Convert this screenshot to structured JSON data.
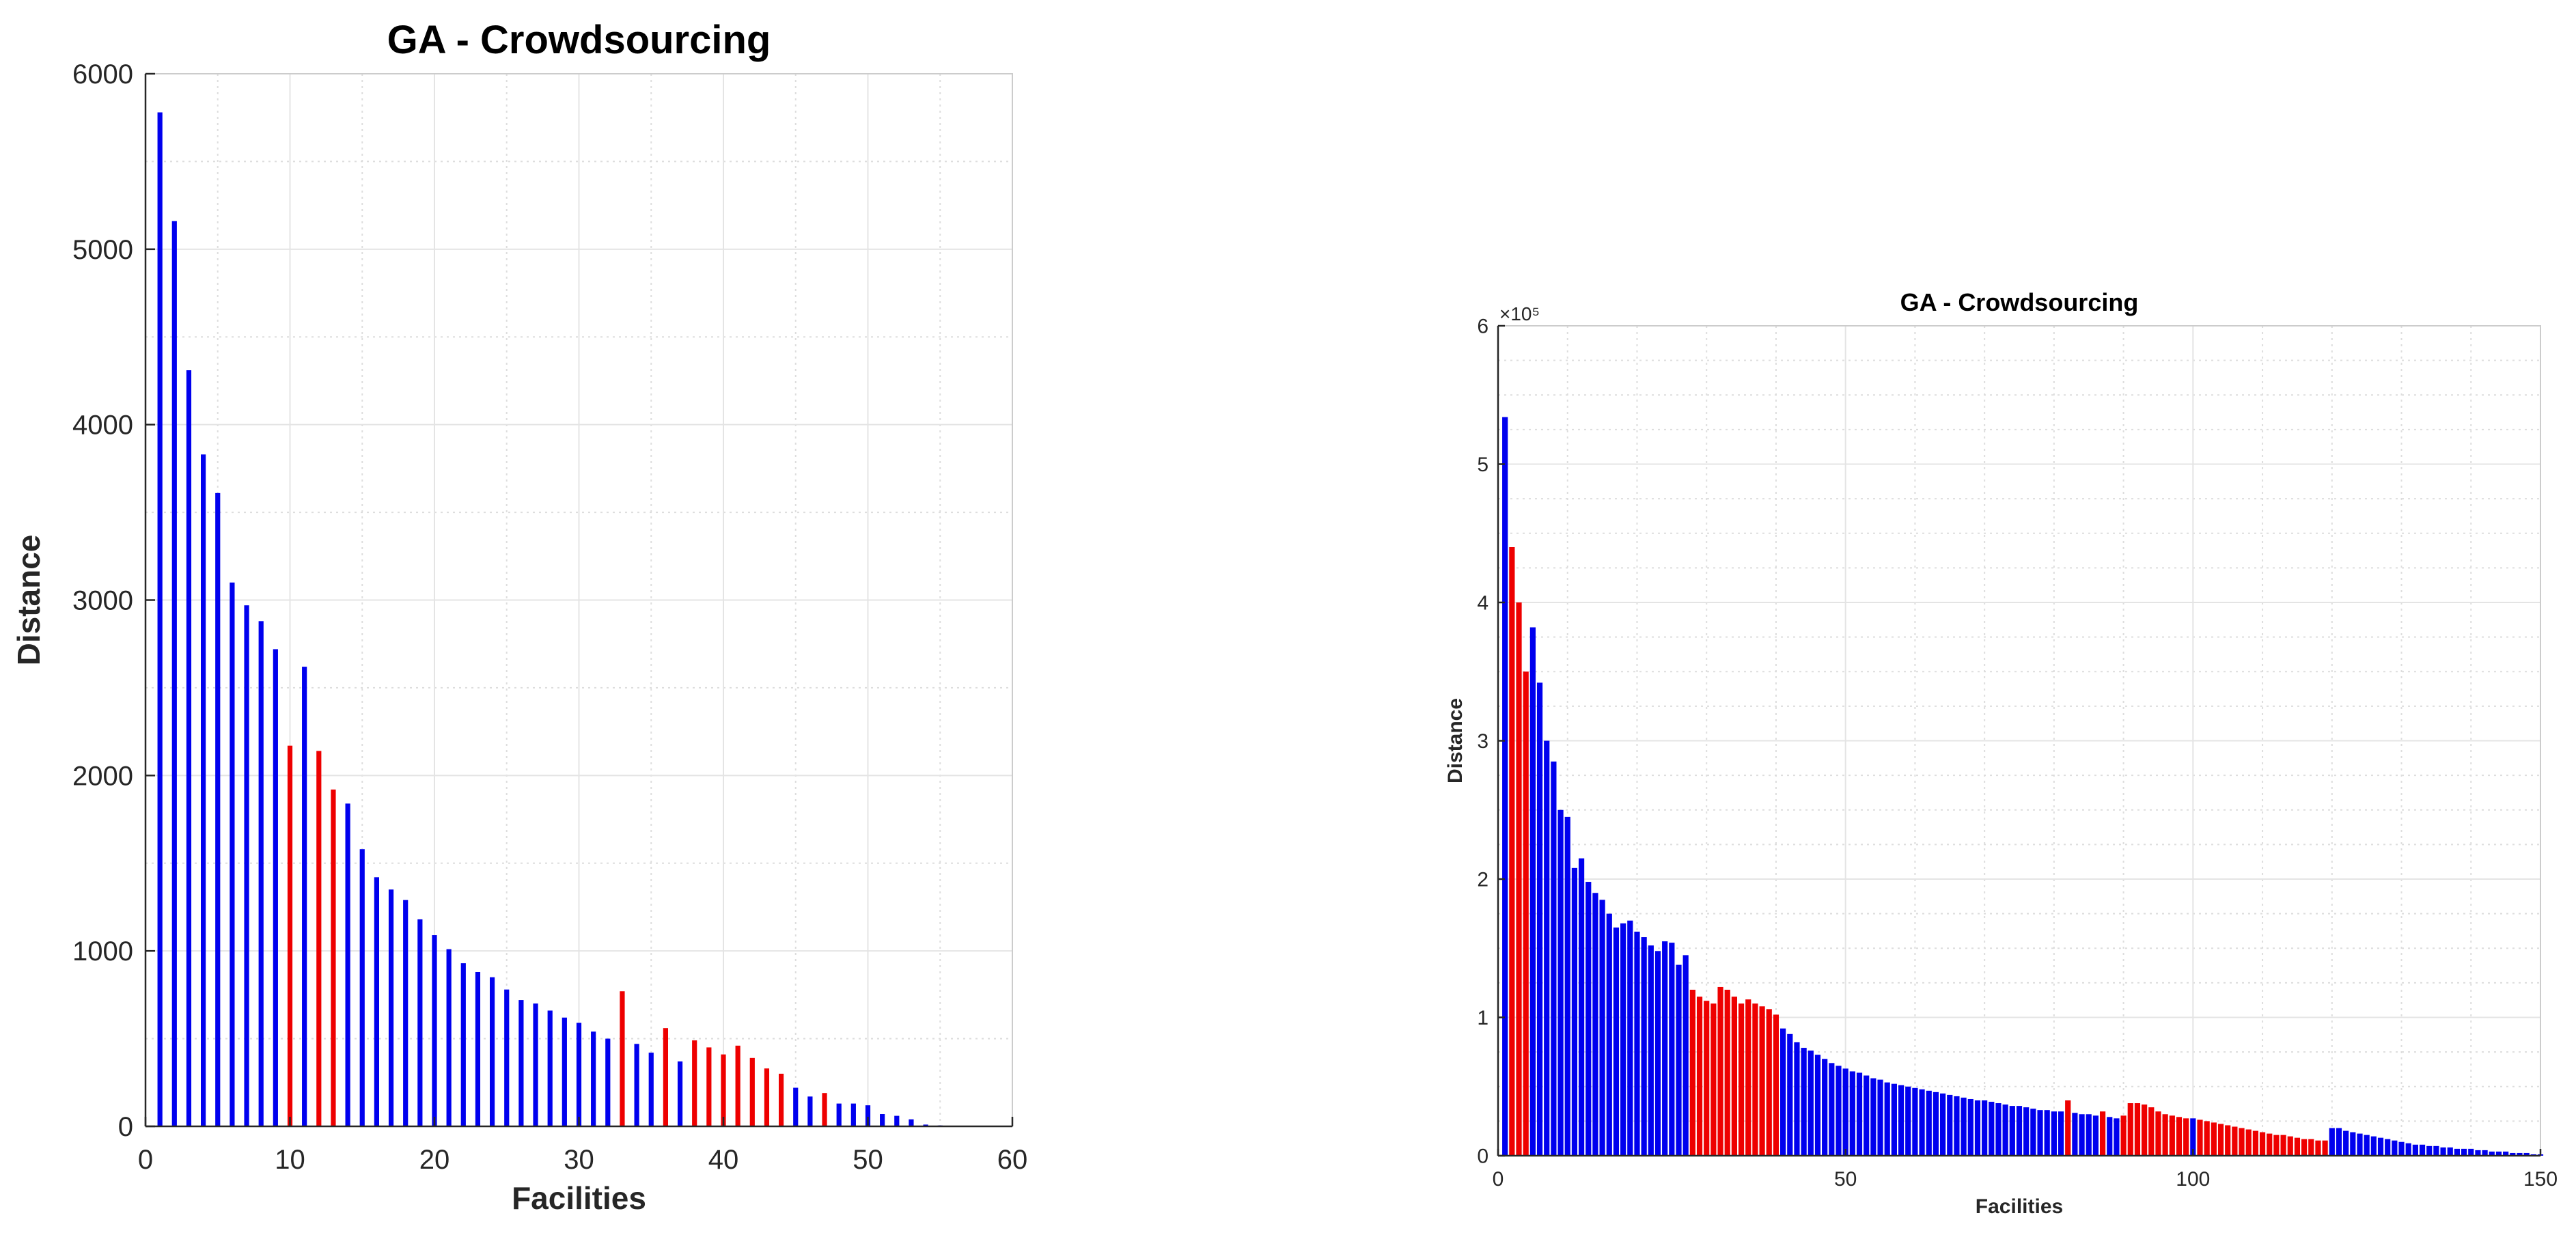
{
  "chart_data": [
    {
      "type": "bar",
      "title": "GA - Crowdsourcing",
      "xlabel": "Facilities",
      "ylabel": "Distance",
      "xlim": [
        0,
        60
      ],
      "ylim": [
        0,
        6000
      ],
      "xticks": [
        0,
        10,
        20,
        30,
        40,
        50,
        60
      ],
      "yticks": [
        0,
        1000,
        2000,
        3000,
        4000,
        5000,
        6000
      ],
      "xtick_labels": [
        "0",
        "10",
        "20",
        "30",
        "40",
        "50",
        "60"
      ],
      "ytick_labels": [
        "0",
        "1000",
        "2000",
        "3000",
        "4000",
        "5000",
        "6000"
      ],
      "exponent_label": "",
      "grid": true,
      "x": [
        1,
        2,
        3,
        4,
        5,
        6,
        7,
        8,
        9,
        10,
        11,
        12,
        13,
        14,
        15,
        16,
        17,
        18,
        19,
        20,
        21,
        22,
        23,
        24,
        25,
        26,
        27,
        28,
        29,
        30,
        31,
        32,
        33,
        34,
        35,
        36,
        37,
        38,
        39,
        40,
        41,
        42,
        43,
        44,
        45,
        46,
        47,
        48,
        49,
        50,
        51,
        52,
        53,
        54,
        55,
        56,
        57,
        58
      ],
      "values": [
        5780,
        5160,
        4310,
        3830,
        3610,
        3100,
        2970,
        2880,
        2720,
        2170,
        2620,
        2140,
        1920,
        1840,
        1580,
        1420,
        1350,
        1290,
        1180,
        1090,
        1010,
        930,
        880,
        850,
        780,
        720,
        700,
        660,
        620,
        590,
        540,
        500,
        770,
        470,
        420,
        560,
        370,
        490,
        450,
        410,
        460,
        390,
        330,
        300,
        220,
        170,
        190,
        130,
        130,
        120,
        70,
        60,
        40,
        10,
        5,
        3,
        2,
        1
      ],
      "colors": [
        "#0000ee",
        "#0000ee",
        "#0000ee",
        "#0000ee",
        "#0000ee",
        "#0000ee",
        "#0000ee",
        "#0000ee",
        "#0000ee",
        "#ee0000",
        "#0000ee",
        "#ee0000",
        "#ee0000",
        "#0000ee",
        "#0000ee",
        "#0000ee",
        "#0000ee",
        "#0000ee",
        "#0000ee",
        "#0000ee",
        "#0000ee",
        "#0000ee",
        "#0000ee",
        "#0000ee",
        "#0000ee",
        "#0000ee",
        "#0000ee",
        "#0000ee",
        "#0000ee",
        "#0000ee",
        "#0000ee",
        "#0000ee",
        "#ee0000",
        "#0000ee",
        "#0000ee",
        "#ee0000",
        "#0000ee",
        "#ee0000",
        "#ee0000",
        "#ee0000",
        "#ee0000",
        "#ee0000",
        "#ee0000",
        "#ee0000",
        "#0000ee",
        "#0000ee",
        "#ee0000",
        "#0000ee",
        "#0000ee",
        "#0000ee",
        "#0000ee",
        "#0000ee",
        "#0000ee",
        "#0000ee",
        "#0000ee",
        "#0000ee",
        "#0000ee",
        "#0000ee"
      ]
    },
    {
      "type": "bar",
      "title": "GA - Crowdsourcing",
      "xlabel": "Facilities",
      "ylabel": "Distance",
      "xlim": [
        0,
        150
      ],
      "ylim": [
        0,
        6
      ],
      "xticks": [
        0,
        50,
        100,
        150
      ],
      "yticks": [
        0,
        1,
        2,
        3,
        4,
        5,
        6
      ],
      "xtick_labels": [
        "0",
        "50",
        "100",
        "150"
      ],
      "ytick_labels": [
        "0",
        "1",
        "2",
        "3",
        "4",
        "5",
        "6"
      ],
      "exponent_label": "×10⁵",
      "grid": true,
      "x": [
        1,
        2,
        3,
        4,
        5,
        6,
        7,
        8,
        9,
        10,
        11,
        12,
        13,
        14,
        15,
        16,
        17,
        18,
        19,
        20,
        21,
        22,
        23,
        24,
        25,
        26,
        27,
        28,
        29,
        30,
        31,
        32,
        33,
        34,
        35,
        36,
        37,
        38,
        39,
        40,
        41,
        42,
        43,
        44,
        45,
        46,
        47,
        48,
        49,
        50,
        51,
        52,
        53,
        54,
        55,
        56,
        57,
        58,
        59,
        60,
        61,
        62,
        63,
        64,
        65,
        66,
        67,
        68,
        69,
        70,
        71,
        72,
        73,
        74,
        75,
        76,
        77,
        78,
        79,
        80,
        81,
        82,
        83,
        84,
        85,
        86,
        87,
        88,
        89,
        90,
        91,
        92,
        93,
        94,
        95,
        96,
        97,
        98,
        99,
        100,
        101,
        102,
        103,
        104,
        105,
        106,
        107,
        108,
        109,
        110,
        111,
        112,
        113,
        114,
        115,
        116,
        117,
        118,
        119,
        120,
        121,
        122,
        123,
        124,
        125,
        126,
        127,
        128,
        129,
        130,
        131,
        132,
        133,
        134,
        135,
        136,
        137,
        138,
        139,
        140,
        141,
        142,
        143,
        144,
        145,
        146,
        147,
        148,
        149,
        150
      ],
      "values": [
        5.34,
        4.4,
        4.0,
        3.5,
        3.82,
        3.42,
        3.0,
        2.85,
        2.5,
        2.45,
        2.08,
        2.15,
        1.98,
        1.9,
        1.85,
        1.75,
        1.65,
        1.68,
        1.7,
        1.62,
        1.58,
        1.52,
        1.48,
        1.55,
        1.54,
        1.38,
        1.45,
        1.2,
        1.15,
        1.12,
        1.1,
        1.22,
        1.2,
        1.15,
        1.1,
        1.13,
        1.1,
        1.08,
        1.06,
        1.02,
        0.92,
        0.88,
        0.82,
        0.78,
        0.76,
        0.73,
        0.7,
        0.67,
        0.65,
        0.63,
        0.61,
        0.6,
        0.58,
        0.56,
        0.55,
        0.53,
        0.52,
        0.51,
        0.5,
        0.49,
        0.48,
        0.47,
        0.46,
        0.45,
        0.44,
        0.43,
        0.42,
        0.41,
        0.4,
        0.4,
        0.39,
        0.38,
        0.37,
        0.36,
        0.36,
        0.35,
        0.34,
        0.33,
        0.33,
        0.32,
        0.32,
        0.4,
        0.31,
        0.3,
        0.3,
        0.29,
        0.32,
        0.28,
        0.27,
        0.29,
        0.38,
        0.38,
        0.37,
        0.35,
        0.32,
        0.3,
        0.29,
        0.28,
        0.27,
        0.27,
        0.26,
        0.25,
        0.24,
        0.23,
        0.22,
        0.21,
        0.2,
        0.19,
        0.18,
        0.17,
        0.16,
        0.15,
        0.15,
        0.14,
        0.13,
        0.12,
        0.12,
        0.11,
        0.11,
        0.2,
        0.2,
        0.18,
        0.17,
        0.16,
        0.15,
        0.14,
        0.13,
        0.12,
        0.11,
        0.1,
        0.09,
        0.08,
        0.08,
        0.07,
        0.07,
        0.06,
        0.06,
        0.05,
        0.05,
        0.05,
        0.04,
        0.04,
        0.03,
        0.03,
        0.03,
        0.02,
        0.02,
        0.02,
        0.01,
        0.01
      ],
      "colors": [
        "#0000ee",
        "#ee0000",
        "#ee0000",
        "#ee0000",
        "#0000ee",
        "#0000ee",
        "#0000ee",
        "#0000ee",
        "#0000ee",
        "#0000ee",
        "#0000ee",
        "#0000ee",
        "#0000ee",
        "#0000ee",
        "#0000ee",
        "#0000ee",
        "#0000ee",
        "#0000ee",
        "#0000ee",
        "#0000ee",
        "#0000ee",
        "#0000ee",
        "#0000ee",
        "#0000ee",
        "#0000ee",
        "#0000ee",
        "#0000ee",
        "#ee0000",
        "#ee0000",
        "#ee0000",
        "#ee0000",
        "#ee0000",
        "#ee0000",
        "#ee0000",
        "#ee0000",
        "#ee0000",
        "#ee0000",
        "#ee0000",
        "#ee0000",
        "#ee0000",
        "#0000ee",
        "#0000ee",
        "#0000ee",
        "#0000ee",
        "#0000ee",
        "#0000ee",
        "#0000ee",
        "#0000ee",
        "#0000ee",
        "#0000ee",
        "#0000ee",
        "#0000ee",
        "#0000ee",
        "#0000ee",
        "#0000ee",
        "#0000ee",
        "#0000ee",
        "#0000ee",
        "#0000ee",
        "#0000ee",
        "#0000ee",
        "#0000ee",
        "#0000ee",
        "#0000ee",
        "#0000ee",
        "#0000ee",
        "#0000ee",
        "#0000ee",
        "#0000ee",
        "#0000ee",
        "#0000ee",
        "#0000ee",
        "#0000ee",
        "#0000ee",
        "#0000ee",
        "#0000ee",
        "#0000ee",
        "#0000ee",
        "#0000ee",
        "#0000ee",
        "#0000ee",
        "#ee0000",
        "#0000ee",
        "#0000ee",
        "#0000ee",
        "#0000ee",
        "#ee0000",
        "#0000ee",
        "#0000ee",
        "#ee0000",
        "#ee0000",
        "#ee0000",
        "#ee0000",
        "#ee0000",
        "#ee0000",
        "#ee0000",
        "#ee0000",
        "#ee0000",
        "#ee0000",
        "#0000ee",
        "#ee0000",
        "#ee0000",
        "#ee0000",
        "#ee0000",
        "#ee0000",
        "#ee0000",
        "#ee0000",
        "#ee0000",
        "#ee0000",
        "#ee0000",
        "#ee0000",
        "#ee0000",
        "#ee0000",
        "#ee0000",
        "#ee0000",
        "#ee0000",
        "#ee0000",
        "#ee0000",
        "#ee0000",
        "#0000ee",
        "#0000ee",
        "#0000ee",
        "#0000ee",
        "#0000ee",
        "#0000ee",
        "#0000ee",
        "#0000ee",
        "#0000ee",
        "#0000ee",
        "#0000ee",
        "#0000ee",
        "#0000ee",
        "#0000ee",
        "#0000ee",
        "#0000ee",
        "#0000ee",
        "#0000ee",
        "#0000ee",
        "#0000ee",
        "#0000ee",
        "#0000ee",
        "#0000ee",
        "#0000ee",
        "#0000ee",
        "#0000ee",
        "#0000ee",
        "#0000ee",
        "#0000ee",
        "#0000ee",
        "#0000ee"
      ]
    }
  ]
}
